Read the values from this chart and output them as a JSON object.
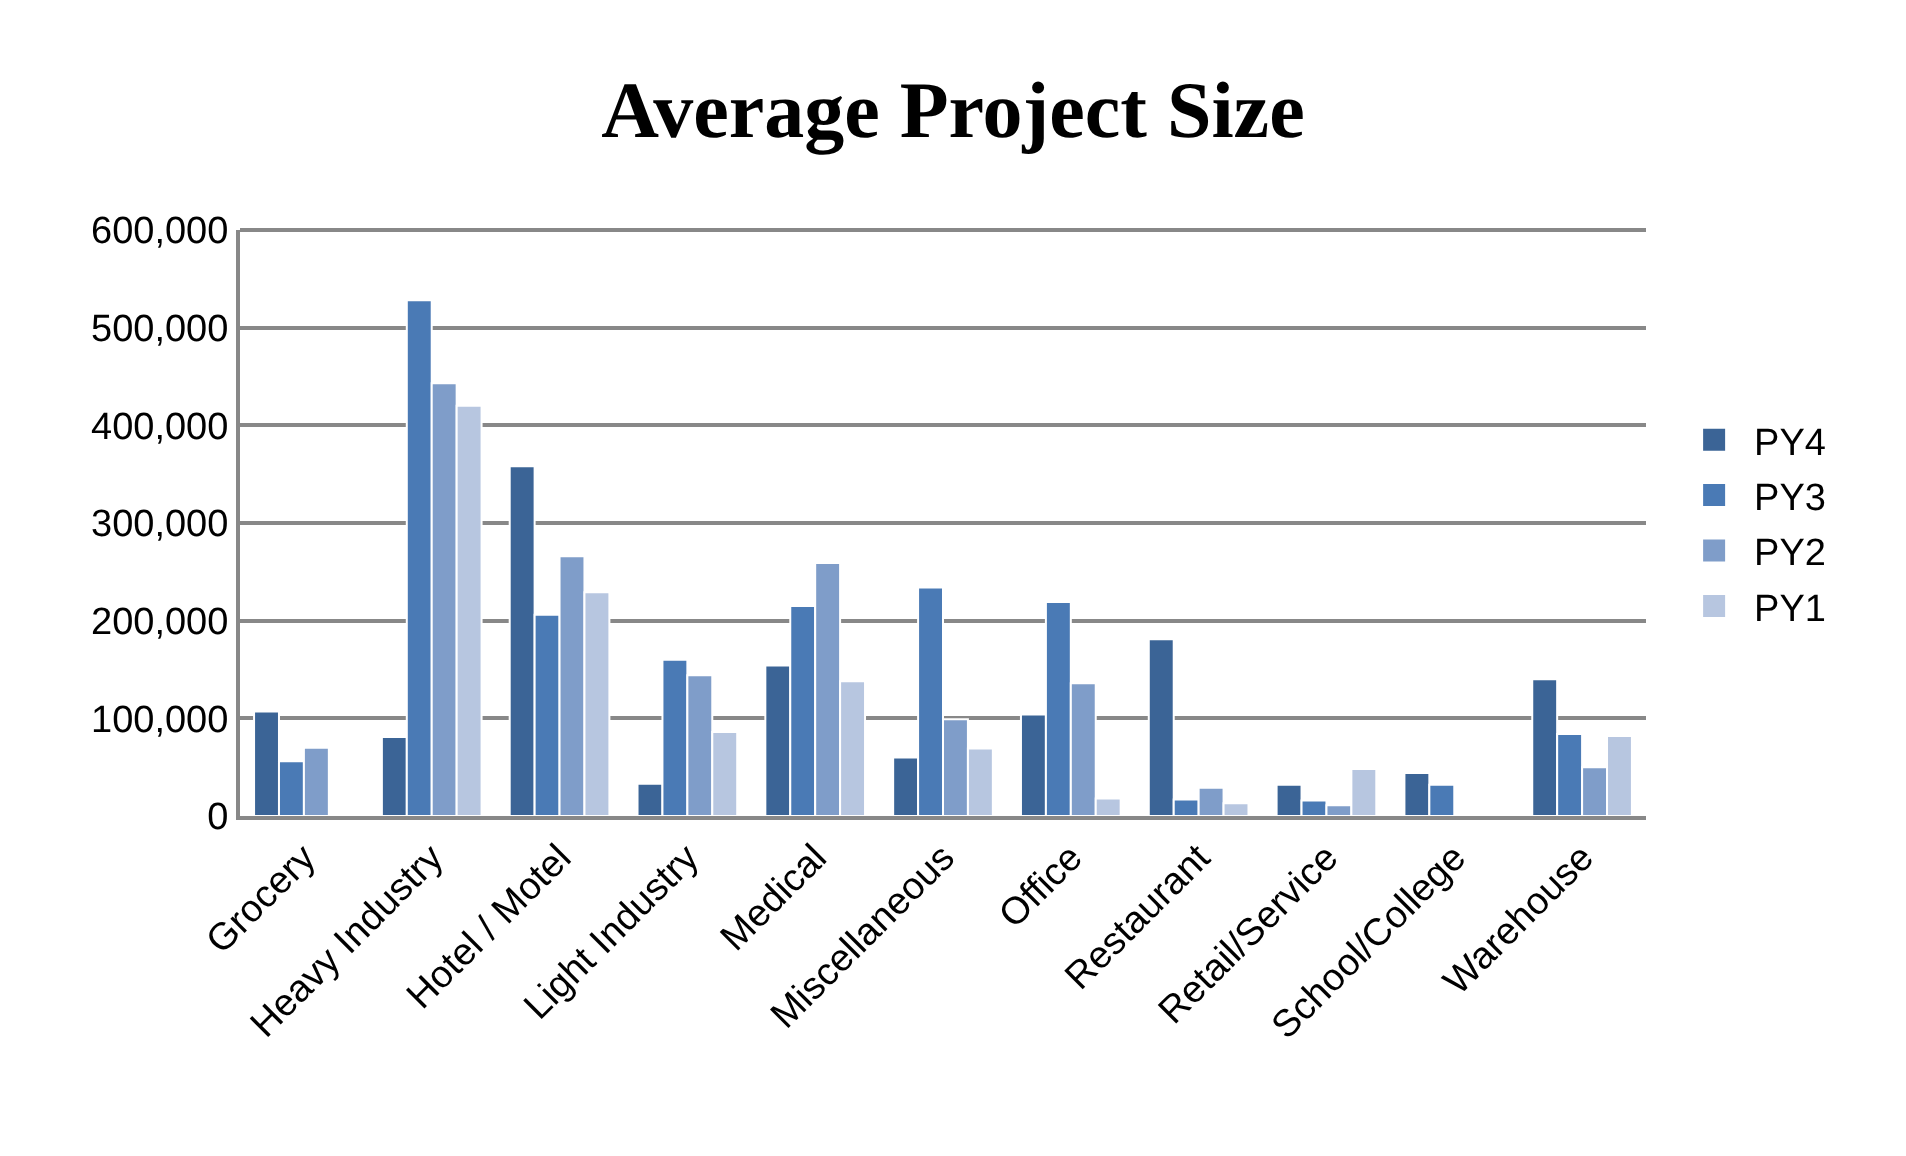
{
  "chart_data": {
    "type": "bar",
    "title": "Average Project Size",
    "categories": [
      "Grocery",
      "Heavy Industry",
      "Hotel / Motel",
      "Light Industry",
      "Medical",
      "Miscellaneous",
      "Office",
      "Restaurant",
      "Retail/Service",
      "School/College",
      "Warehouse"
    ],
    "series": [
      {
        "name": "PY4",
        "color": "#3b6496",
        "values": [
          107000,
          81000,
          358000,
          33000,
          154000,
          60000,
          104000,
          181000,
          32000,
          44000,
          140000
        ]
      },
      {
        "name": "PY3",
        "color": "#4a7ab5",
        "values": [
          56000,
          528000,
          206000,
          160000,
          215000,
          234000,
          219000,
          17000,
          16000,
          32000,
          84000
        ]
      },
      {
        "name": "PY2",
        "color": "#7f9dc9",
        "values": [
          70000,
          443000,
          266000,
          144000,
          259000,
          99000,
          136000,
          29000,
          11000,
          null,
          50000
        ]
      },
      {
        "name": "PY1",
        "color": "#b7c6e0",
        "values": [
          null,
          420000,
          229000,
          86000,
          138000,
          69000,
          18000,
          13000,
          48000,
          null,
          82000
        ]
      }
    ],
    "ylim": [
      0,
      600000
    ],
    "yticks": [
      {
        "value": 0,
        "label": "0"
      },
      {
        "value": 100000,
        "label": "100,000"
      },
      {
        "value": 200000,
        "label": "200,000"
      },
      {
        "value": 300000,
        "label": "300,000"
      },
      {
        "value": 400000,
        "label": "400,000"
      },
      {
        "value": 500000,
        "label": "500,000"
      },
      {
        "value": 600000,
        "label": "600,000"
      }
    ],
    "grid": "y",
    "legend": "right"
  }
}
